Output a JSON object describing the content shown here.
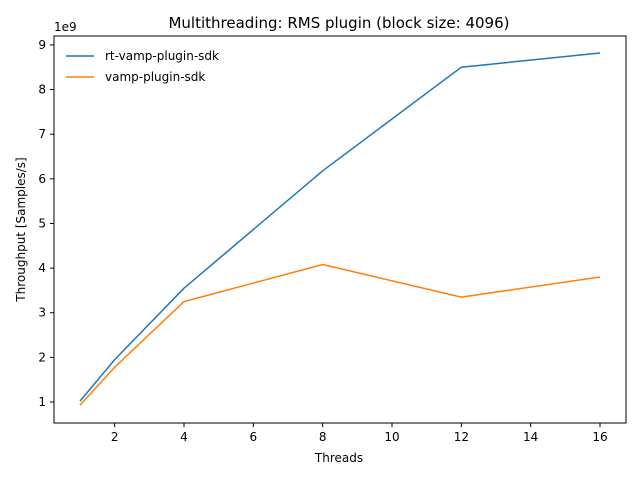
{
  "chart_data": {
    "type": "line",
    "title": "Multithreading: RMS plugin (block size: 4096)",
    "xlabel": "Threads",
    "ylabel": "Throughput [Samples/s]",
    "y_offset_label": "1e9",
    "x": [
      1,
      2,
      4,
      8,
      12,
      16
    ],
    "xlim": [
      0.25,
      16.75
    ],
    "ylim": [
      0.53,
      9.2
    ],
    "xticks": [
      2,
      4,
      6,
      8,
      10,
      12,
      14,
      16
    ],
    "yticks": [
      1,
      2,
      3,
      4,
      5,
      6,
      7,
      8,
      9
    ],
    "y_units_multiplier": 1000000000,
    "grid": false,
    "legend_position": "top-left",
    "series": [
      {
        "name": "rt-vamp-plugin-sdk",
        "color": "#1f77b4",
        "values": [
          1.02,
          1.95,
          3.55,
          6.18,
          8.5,
          8.82
        ]
      },
      {
        "name": "vamp-plugin-sdk",
        "color": "#ff7f0e",
        "values": [
          0.93,
          1.78,
          3.25,
          4.08,
          3.35,
          3.8
        ]
      }
    ]
  }
}
